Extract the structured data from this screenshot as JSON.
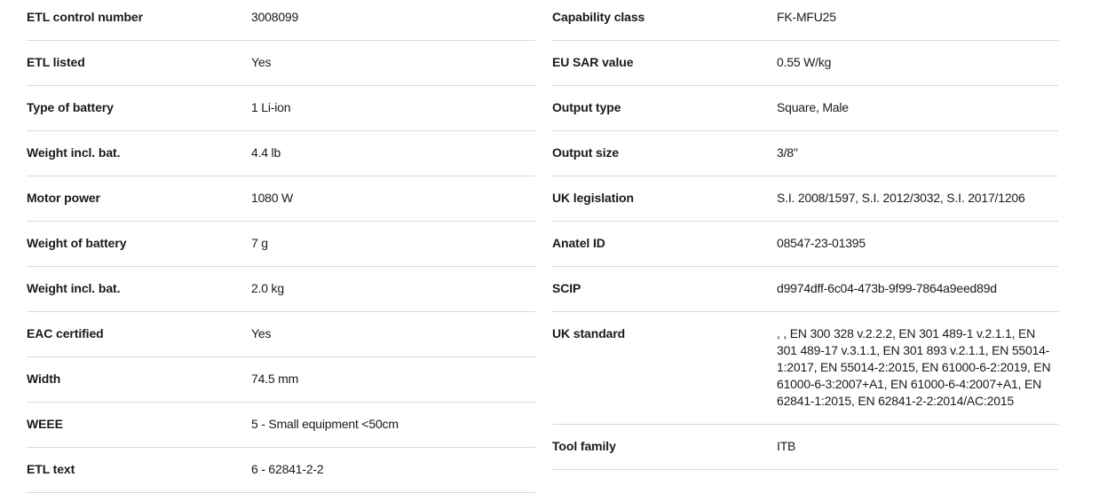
{
  "colors": {
    "text": "#1a1a1a",
    "divider": "#d9d9d9",
    "background": "#ffffff"
  },
  "table": {
    "left_column": {
      "rows": [
        {
          "label": "ETL control number",
          "value": "3008099"
        },
        {
          "label": "ETL listed",
          "value": "Yes"
        },
        {
          "label": "Type of battery",
          "value": "1 Li-ion"
        },
        {
          "label": "Weight incl. bat.",
          "value": "4.4 lb"
        },
        {
          "label": "Motor power",
          "value": "1080 W"
        },
        {
          "label": "Weight of battery",
          "value": "7 g"
        },
        {
          "label": "Weight incl. bat.",
          "value": "2.0 kg"
        },
        {
          "label": "EAC certified",
          "value": "Yes"
        },
        {
          "label": "Width",
          "value": "74.5 mm"
        },
        {
          "label": "WEEE",
          "value": "5 - Small equipment <50cm"
        },
        {
          "label": "ETL text",
          "value": "6 - 62841-2-2"
        }
      ]
    },
    "right_column": {
      "rows": [
        {
          "label": "Capability class",
          "value": "FK-MFU25"
        },
        {
          "label": "EU SAR value",
          "value": "0.55 W/kg"
        },
        {
          "label": "Output type",
          "value": "Square, Male"
        },
        {
          "label": "Output size",
          "value": "3/8\""
        },
        {
          "label": "UK legislation",
          "value": "S.I. 2008/1597, S.I. 2012/3032, S.I. 2017/1206"
        },
        {
          "label": "Anatel ID",
          "value": "08547-23-01395"
        },
        {
          "label": "SCIP",
          "value": "d9974dff-6c04-473b-9f99-7864a9eed89d"
        },
        {
          "label": "UK standard",
          "value": ", , EN 300 328 v.2.2.2, EN 301 489-1 v.2.1.1, EN 301 489-17 v.3.1.1, EN 301 893 v.2.1.1, EN 55014-1:2017, EN 55014-2:2015, EN 61000-6-2:2019, EN 61000-6-3:2007+A1, EN 61000-6-4:2007+A1, EN 62841-1:2015, EN 62841-2-2:2014/AC:2015"
        },
        {
          "label": "Tool family",
          "value": "ITB"
        }
      ]
    }
  }
}
